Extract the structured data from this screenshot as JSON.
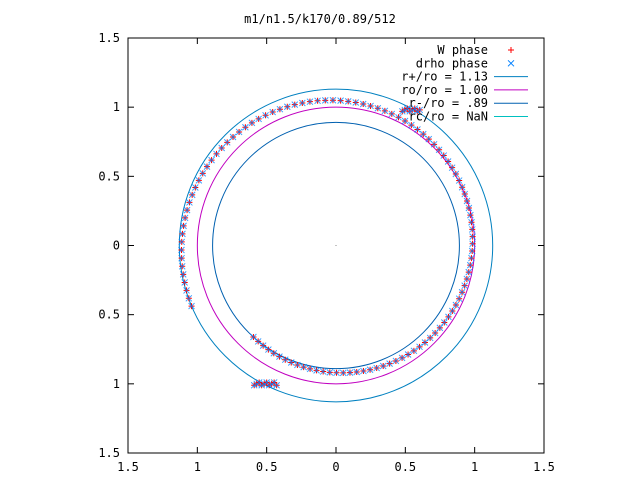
{
  "chart_data": {
    "type": "scatter",
    "title": "m1/n1.5/k170/0.89/512",
    "xlim": [
      -1.5,
      1.5
    ],
    "ylim": [
      -1.5,
      1.5
    ],
    "xticks": [
      {
        "value": -1.5,
        "label": "1.5"
      },
      {
        "value": -1.0,
        "label": "1"
      },
      {
        "value": -0.5,
        "label": "0.5"
      },
      {
        "value": 0.0,
        "label": "0"
      },
      {
        "value": 0.5,
        "label": "0.5"
      },
      {
        "value": 1.0,
        "label": "1"
      },
      {
        "value": 1.5,
        "label": "1.5"
      }
    ],
    "yticks": [
      {
        "value": 1.5,
        "label": "1.5"
      },
      {
        "value": 1.0,
        "label": "1"
      },
      {
        "value": 0.5,
        "label": "0.5"
      },
      {
        "value": 0.0,
        "label": "0"
      },
      {
        "value": -0.5,
        "label": "0.5"
      },
      {
        "value": -1.0,
        "label": "1"
      },
      {
        "value": -1.5,
        "label": "1.5"
      }
    ],
    "grid": false,
    "legend_position": "top-right",
    "legend": [
      {
        "label": "W phase",
        "color": "#ff0000",
        "marker": "plus"
      },
      {
        "label": "drho phase",
        "color": "#0080ff",
        "marker": "cross"
      },
      {
        "label": "r+/ro = 1.13",
        "color": "#0080c0",
        "marker": "line"
      },
      {
        "label": "ro/ro = 1.00",
        "color": "#c000c0",
        "marker": "line"
      },
      {
        "label": "r-/ro = .89",
        "color": "#0060b0",
        "marker": "line"
      },
      {
        "label": "rc/ro = NaN",
        "color": "#00c0c0",
        "marker": "line"
      }
    ],
    "circles": [
      {
        "name": "r+/ro",
        "radius": 1.13,
        "color": "#0080c0"
      },
      {
        "name": "ro/ro",
        "radius": 1.0,
        "color": "#c000c0"
      },
      {
        "name": "r-/ro",
        "radius": 0.89,
        "color": "#0060b0"
      }
    ],
    "spiral": {
      "turns": 0.93,
      "r_start": 0.89,
      "r_end": 1.13,
      "angle_start_deg": 228,
      "direction": "ccw",
      "points": 112
    },
    "clusters": [
      {
        "x": 0.55,
        "y": 0.98,
        "count": 8
      },
      {
        "x": -0.5,
        "y": -1.0,
        "count": 10
      }
    ]
  }
}
